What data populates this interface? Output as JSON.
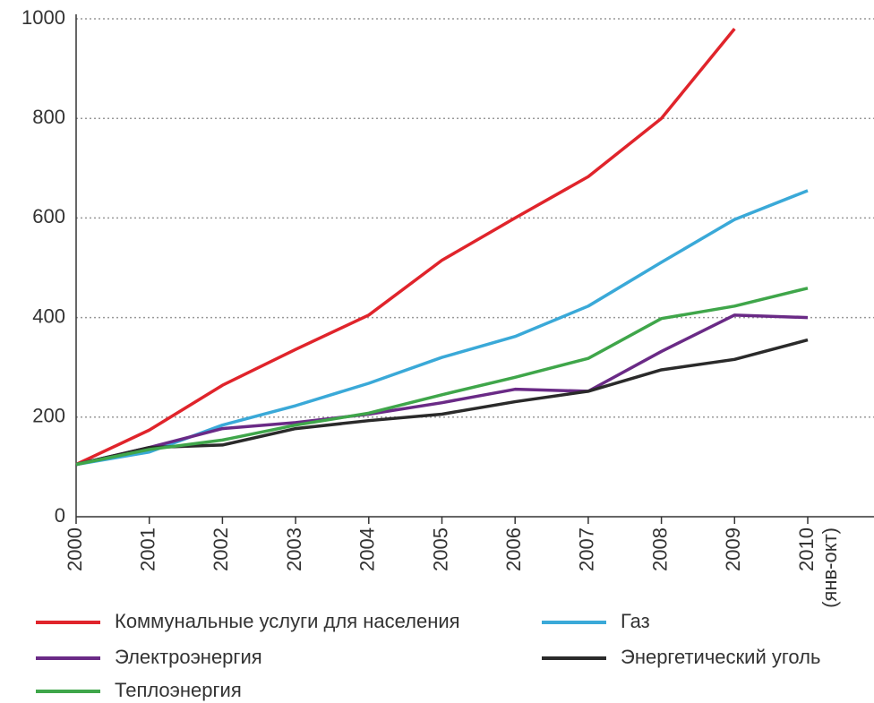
{
  "chart_data": {
    "type": "line",
    "categories": [
      "2000",
      "2001",
      "2002",
      "2003",
      "2004",
      "2005",
      "2006",
      "2007",
      "2008",
      "2009",
      "2010"
    ],
    "x_note": "(янв-окт)",
    "series": [
      {
        "name": "Коммунальные услуги для населения",
        "color": "#e0242b",
        "values": [
          105,
          174,
          264,
          336,
          405,
          515,
          600,
          683,
          800,
          980,
          null
        ]
      },
      {
        "name": "Газ",
        "color": "#3aa9d8",
        "values": [
          105,
          130,
          184,
          223,
          268,
          320,
          362,
          423,
          511,
          597,
          655
        ]
      },
      {
        "name": "Электроэнергия",
        "color": "#6a2a86",
        "values": [
          105,
          139,
          177,
          189,
          206,
          229,
          256,
          252,
          332,
          405,
          400
        ]
      },
      {
        "name": "Энергетический уголь",
        "color": "#2a2a2a",
        "values": [
          105,
          139,
          144,
          177,
          193,
          206,
          231,
          252,
          295,
          316,
          355
        ]
      },
      {
        "name": "Теплоэнергия",
        "color": "#3fa64a",
        "values": [
          105,
          135,
          154,
          184,
          208,
          245,
          280,
          318,
          398,
          423,
          459
        ]
      }
    ],
    "ylim": [
      0,
      1000
    ],
    "yticks": [
      0,
      200,
      400,
      600,
      800,
      1000
    ],
    "grid": true
  }
}
